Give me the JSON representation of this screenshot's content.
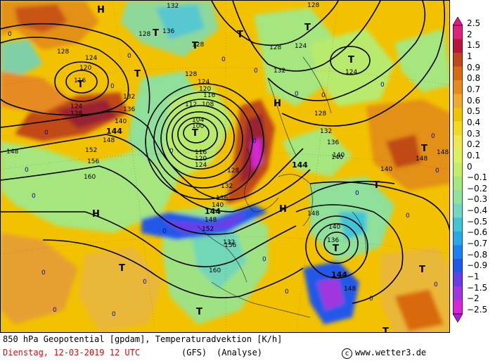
{
  "map": {
    "title": "850 hPa Geopotential [gpdam], Temperaturadvektion [K/h]",
    "date_line": "Dienstag, 12-03-2019   12 UTC",
    "model": "(GFS)",
    "kind": "(Analyse)",
    "credit": "www.wetter3.de",
    "copyright_symbol": "c",
    "pressure_labels": [
      {
        "text": "H"
      },
      {
        "text": "T"
      },
      {
        "text": "T"
      },
      {
        "text": "T"
      },
      {
        "text": "T"
      },
      {
        "text": "T"
      },
      {
        "text": "T"
      },
      {
        "text": "H"
      },
      {
        "text": "T"
      },
      {
        "text": "T"
      },
      {
        "text": "T"
      },
      {
        "text": "H"
      },
      {
        "text": "H"
      },
      {
        "text": "T"
      },
      {
        "text": "T"
      },
      {
        "text": "T"
      },
      {
        "text": "T"
      },
      {
        "text": "T"
      },
      {
        "text": "T"
      }
    ],
    "contour_labels": [
      {
        "text": "132"
      },
      {
        "text": "136"
      },
      {
        "text": "128"
      },
      {
        "text": "128"
      },
      {
        "text": "124"
      },
      {
        "text": "120"
      },
      {
        "text": "116"
      },
      {
        "text": "124"
      },
      {
        "text": "128"
      },
      {
        "text": "132"
      },
      {
        "text": "136"
      },
      {
        "text": "140"
      },
      {
        "text": "144",
        "bold": true
      },
      {
        "text": "148"
      },
      {
        "text": "152"
      },
      {
        "text": "156"
      },
      {
        "text": "148"
      },
      {
        "text": "160"
      },
      {
        "text": "128"
      },
      {
        "text": "124"
      },
      {
        "text": "120"
      },
      {
        "text": "116"
      },
      {
        "text": "112"
      },
      {
        "text": "108"
      },
      {
        "text": "104"
      },
      {
        "text": "100"
      },
      {
        "text": "116"
      },
      {
        "text": "120"
      },
      {
        "text": "124"
      },
      {
        "text": "128"
      },
      {
        "text": "132"
      },
      {
        "text": "136"
      },
      {
        "text": "140"
      },
      {
        "text": "144",
        "bold": true
      },
      {
        "text": "148"
      },
      {
        "text": "152"
      },
      {
        "text": "156"
      },
      {
        "text": "160"
      },
      {
        "text": "132"
      },
      {
        "text": "128"
      },
      {
        "text": "128"
      },
      {
        "text": "124"
      },
      {
        "text": "128"
      },
      {
        "text": "124"
      },
      {
        "text": "132"
      },
      {
        "text": "136"
      },
      {
        "text": "140"
      },
      {
        "text": "144",
        "bold": true
      },
      {
        "text": "148"
      },
      {
        "text": "140"
      },
      {
        "text": "136"
      },
      {
        "text": "140"
      },
      {
        "text": "144",
        "bold": true
      },
      {
        "text": "148"
      },
      {
        "text": "148"
      },
      {
        "text": "140"
      },
      {
        "text": "148"
      },
      {
        "text": "132"
      },
      {
        "text": "128"
      }
    ],
    "zero_labels": [
      "0",
      "0",
      "0",
      "0",
      "0",
      "0",
      "0",
      "0",
      "0",
      "0",
      "0",
      "0",
      "0",
      "0",
      "0",
      "0",
      "0",
      "0",
      "0",
      "0",
      "0",
      "0",
      "0",
      "0",
      "0",
      "0"
    ]
  },
  "colorbar": {
    "ticks": [
      "2.5",
      "2",
      "1.5",
      "1",
      "0.9",
      "0.8",
      "0.7",
      "0.6",
      "0.5",
      "0.4",
      "0.3",
      "0.2",
      "0.1",
      "0",
      "-0.1",
      "-0.2",
      "-0.3",
      "-0.4",
      "-0.5",
      "-0.6",
      "-0.7",
      "-0.8",
      "-0.9",
      "-1",
      "-1.5",
      "-2",
      "-2.5"
    ],
    "colors": [
      "#e0207a",
      "#b8163a",
      "#c04818",
      "#d86a10",
      "#e68a20",
      "#eeaa28",
      "#f2c400",
      "#f5d820",
      "#f0e850",
      "#dcf060",
      "#c2ec6a",
      "#a6e67e",
      "#8ee09a",
      "#70d8c0",
      "#40c4d8",
      "#28a8e8",
      "#1c80f0",
      "#2058e8",
      "#6a3ce6",
      "#a236de",
      "#d826d6"
    ],
    "accent": "#e8148c"
  }
}
